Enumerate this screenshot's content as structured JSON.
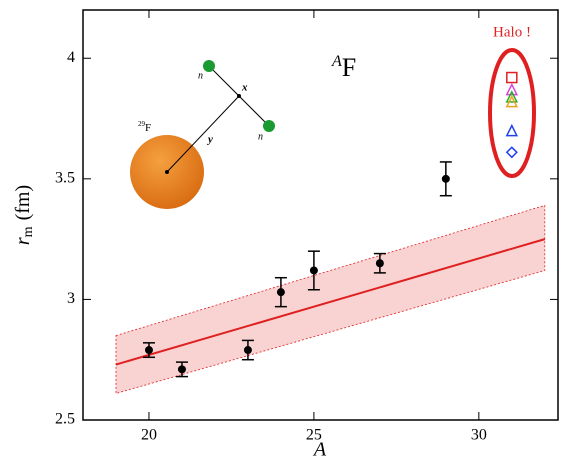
{
  "chart_data": {
    "type": "scatter",
    "title": {
      "superscript": "A",
      "text": "F"
    },
    "xlabel": "A",
    "ylabel": {
      "symbol": "r",
      "subscript": "m",
      "unit": "(fm)"
    },
    "xlim": [
      18,
      32.4
    ],
    "ylim": [
      2.5,
      4.2
    ],
    "xticks": [
      20,
      25,
      30
    ],
    "yticks": [
      2.5,
      3,
      3.5,
      4
    ],
    "x": [
      20,
      21,
      23,
      24,
      25,
      27,
      29
    ],
    "values": [
      2.79,
      2.71,
      2.79,
      3.03,
      3.12,
      3.15,
      3.5
    ],
    "errors": [
      0.03,
      0.03,
      0.04,
      0.06,
      0.08,
      0.04,
      0.07
    ],
    "color": "#000000",
    "fit": {
      "x": [
        19,
        32
      ],
      "values": [
        2.73,
        3.25
      ],
      "lower": [
        2.61,
        3.12
      ],
      "upper": [
        2.85,
        3.39
      ],
      "color": "#e02020"
    },
    "halo": {
      "label": "Halo !",
      "x": [
        31,
        31,
        31,
        31,
        31,
        31
      ],
      "values": [
        3.92,
        3.87,
        3.84,
        3.82,
        3.7,
        3.61
      ],
      "markers": [
        "square",
        "triangle",
        "triangle",
        "triangle",
        "triangle",
        "diamond"
      ],
      "colors": [
        "#e02020",
        "#e040e0",
        "#20b020",
        "#f0a020",
        "#2040f0",
        "#2040f0"
      ]
    },
    "inset": {
      "labels": [
        "n",
        "x",
        "y",
        "n"
      ],
      "nucleus": {
        "superscript": "29",
        "text": "F"
      }
    }
  }
}
